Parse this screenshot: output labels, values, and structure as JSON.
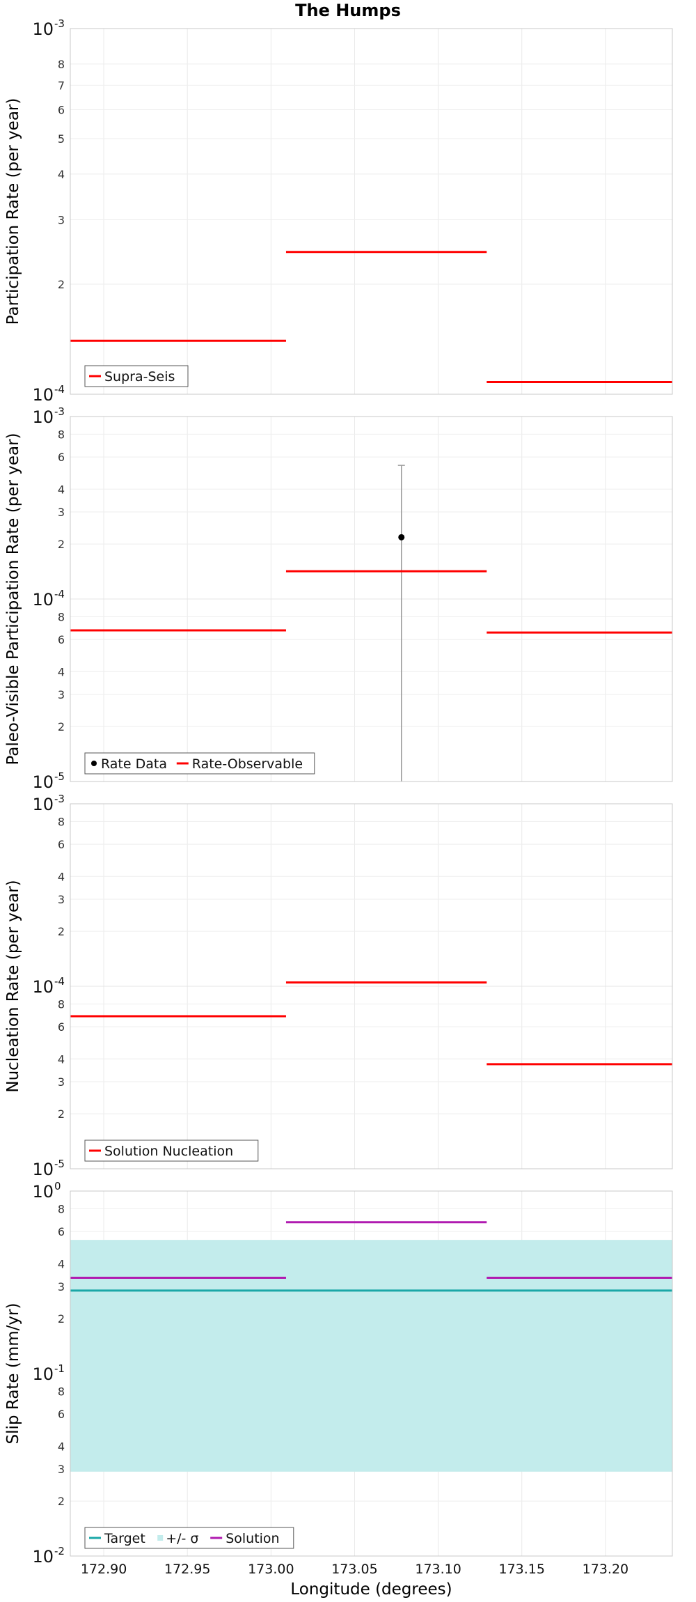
{
  "figure": {
    "title": "The Humps"
  },
  "chart_data": [
    {
      "type": "line",
      "ylabel": "Participation Rate (per year)",
      "yscale": "log",
      "ylim": [
        0.0001,
        0.001
      ],
      "xlim": [
        172.88,
        173.24
      ],
      "grid": true,
      "legend": {
        "placement": "bottom-left",
        "entries": [
          "Supra-Seis"
        ]
      },
      "major_ticks": [
        {
          "value": 0.0001,
          "base": "10",
          "exp": "-4"
        },
        {
          "value": 0.001,
          "base": "10",
          "exp": "-3"
        }
      ],
      "minor_ticks": [
        {
          "value": 0.0002,
          "label": "2"
        },
        {
          "value": 0.0003,
          "label": "3"
        },
        {
          "value": 0.0004,
          "label": "4"
        },
        {
          "value": 0.0005,
          "label": "5"
        },
        {
          "value": 0.0006,
          "label": "6"
        },
        {
          "value": 0.0007,
          "label": "7"
        },
        {
          "value": 0.0008,
          "label": "8"
        }
      ],
      "series": [
        {
          "name": "Supra-Seis",
          "kind": "step",
          "color": "#ff0000",
          "segments": [
            {
              "x": [
                172.88,
                173.009
              ],
              "y": 0.00014
            },
            {
              "x": [
                173.009,
                173.129
              ],
              "y": 0.000245
            },
            {
              "x": [
                173.129,
                173.24
              ],
              "y": 0.000108
            }
          ]
        }
      ]
    },
    {
      "type": "line",
      "ylabel": "Paleo-Visible Participation Rate (per year)",
      "yscale": "log",
      "ylim": [
        1e-05,
        0.001
      ],
      "xlim": [
        172.88,
        173.24
      ],
      "grid": true,
      "legend": {
        "placement": "bottom-left",
        "entries": [
          "Rate Data",
          "Rate-Observable"
        ]
      },
      "major_ticks": [
        {
          "value": 1e-05,
          "base": "10",
          "exp": "-5"
        },
        {
          "value": 0.0001,
          "base": "10",
          "exp": "-4"
        },
        {
          "value": 0.001,
          "base": "10",
          "exp": "-3"
        }
      ],
      "minor_ticks": [
        {
          "value": 2e-05,
          "label": "2"
        },
        {
          "value": 3e-05,
          "label": "3"
        },
        {
          "value": 4e-05,
          "label": "4"
        },
        {
          "value": 6e-05,
          "label": "6"
        },
        {
          "value": 8e-05,
          "label": "8"
        },
        {
          "value": 0.0002,
          "label": "2"
        },
        {
          "value": 0.0003,
          "label": "3"
        },
        {
          "value": 0.0004,
          "label": "4"
        },
        {
          "value": 0.0006,
          "label": "6"
        },
        {
          "value": 0.0008,
          "label": "8"
        }
      ],
      "series": [
        {
          "name": "Rate Data",
          "kind": "point",
          "color": "#000000",
          "points": [
            {
              "x": 173.078,
              "y": 0.000218,
              "err_low": 1e-05,
              "err_high": 0.00054
            }
          ]
        },
        {
          "name": "Rate-Observable",
          "kind": "step",
          "color": "#ff0000",
          "segments": [
            {
              "x": [
                172.88,
                173.009
              ],
              "y": 6.73e-05
            },
            {
              "x": [
                173.009,
                173.129
              ],
              "y": 0.000142
            },
            {
              "x": [
                173.129,
                173.24
              ],
              "y": 6.55e-05
            }
          ]
        }
      ]
    },
    {
      "type": "line",
      "ylabel": "Nucleation Rate (per year)",
      "yscale": "log",
      "ylim": [
        1e-05,
        0.001
      ],
      "xlim": [
        172.88,
        173.24
      ],
      "grid": true,
      "legend": {
        "placement": "bottom-left",
        "entries": [
          "Solution Nucleation"
        ]
      },
      "major_ticks": [
        {
          "value": 1e-05,
          "base": "10",
          "exp": "-5"
        },
        {
          "value": 0.0001,
          "base": "10",
          "exp": "-4"
        },
        {
          "value": 0.001,
          "base": "10",
          "exp": "-3"
        }
      ],
      "minor_ticks": [
        {
          "value": 2e-05,
          "label": "2"
        },
        {
          "value": 3e-05,
          "label": "3"
        },
        {
          "value": 4e-05,
          "label": "4"
        },
        {
          "value": 6e-05,
          "label": "6"
        },
        {
          "value": 8e-05,
          "label": "8"
        },
        {
          "value": 0.0002,
          "label": "2"
        },
        {
          "value": 0.0003,
          "label": "3"
        },
        {
          "value": 0.0004,
          "label": "4"
        },
        {
          "value": 0.0006,
          "label": "6"
        },
        {
          "value": 0.0008,
          "label": "8"
        }
      ],
      "series": [
        {
          "name": "Solution Nucleation",
          "kind": "step",
          "color": "#ff0000",
          "segments": [
            {
              "x": [
                172.88,
                173.009
              ],
              "y": 6.85e-05
            },
            {
              "x": [
                173.009,
                173.129
              ],
              "y": 0.000105
            },
            {
              "x": [
                173.129,
                173.24
              ],
              "y": 3.74e-05
            }
          ]
        }
      ]
    },
    {
      "type": "line",
      "ylabel": "Slip Rate (mm/yr)",
      "xlabel": "Longitude (degrees)",
      "yscale": "log",
      "ylim": [
        0.01,
        1
      ],
      "xlim": [
        172.88,
        173.24
      ],
      "grid": true,
      "legend": {
        "placement": "bottom-left",
        "entries": [
          "Target",
          "+/- σ",
          "Solution"
        ]
      },
      "x_ticks": [
        {
          "value": 172.9,
          "label": "172.90"
        },
        {
          "value": 172.95,
          "label": "172.95"
        },
        {
          "value": 173.0,
          "label": "173.00"
        },
        {
          "value": 173.05,
          "label": "173.05"
        },
        {
          "value": 173.1,
          "label": "173.10"
        },
        {
          "value": 173.15,
          "label": "173.15"
        },
        {
          "value": 173.2,
          "label": "173.20"
        }
      ],
      "major_ticks": [
        {
          "value": 0.01,
          "base": "10",
          "exp": "-2"
        },
        {
          "value": 0.1,
          "base": "10",
          "exp": "-1"
        },
        {
          "value": 1,
          "base": "10",
          "exp": "0"
        }
      ],
      "minor_ticks": [
        {
          "value": 0.02,
          "label": "2"
        },
        {
          "value": 0.03,
          "label": "3"
        },
        {
          "value": 0.04,
          "label": "4"
        },
        {
          "value": 0.06,
          "label": "6"
        },
        {
          "value": 0.08,
          "label": "8"
        },
        {
          "value": 0.2,
          "label": "2"
        },
        {
          "value": 0.3,
          "label": "3"
        },
        {
          "value": 0.4,
          "label": "4"
        },
        {
          "value": 0.6,
          "label": "6"
        },
        {
          "value": 0.8,
          "label": "8"
        }
      ],
      "series": [
        {
          "name": "+/- σ",
          "kind": "band",
          "color": "#c3ecec",
          "range": {
            "x": [
              172.88,
              173.24
            ],
            "y_low": 0.029,
            "y_high": 0.54
          }
        },
        {
          "name": "Target",
          "kind": "step",
          "color": "#1aa7a7",
          "segments": [
            {
              "x": [
                172.88,
                173.24
              ],
              "y": 0.285
            }
          ]
        },
        {
          "name": "Solution",
          "kind": "step",
          "color": "#b01ab0",
          "segments": [
            {
              "x": [
                172.88,
                173.009
              ],
              "y": 0.335
            },
            {
              "x": [
                173.009,
                173.129
              ],
              "y": 0.675
            },
            {
              "x": [
                173.129,
                173.24
              ],
              "y": 0.335
            }
          ]
        }
      ]
    }
  ]
}
